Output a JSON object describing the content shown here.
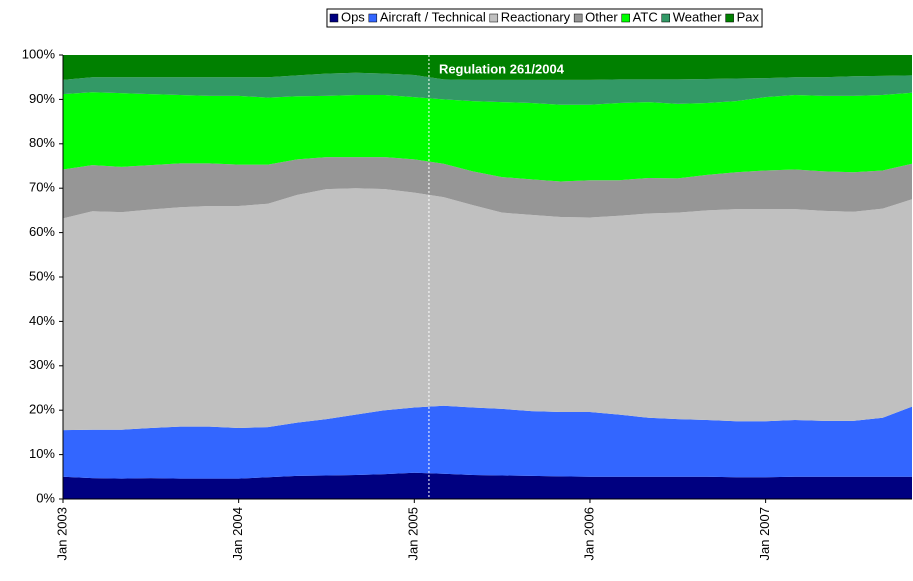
{
  "chart_data": {
    "type": "stacked_area",
    "categories": [
      "Jan 2003",
      null,
      null,
      null,
      null,
      null,
      "Jan 2004",
      null,
      null,
      null,
      null,
      null,
      "Jan 2005",
      null,
      null,
      null,
      null,
      null,
      "Jan 2006",
      null,
      null,
      null,
      null,
      null,
      "Jan 2007",
      null,
      null,
      null,
      null,
      null
    ],
    "series": [
      {
        "name": "Ops",
        "color": "#000080",
        "values": [
          5.0,
          4.7,
          4.6,
          4.7,
          4.6,
          4.6,
          4.6,
          4.9,
          5.2,
          5.3,
          5.4,
          5.6,
          5.9,
          5.7,
          5.4,
          5.3,
          5.2,
          5.1,
          5.0,
          5.0,
          5.0,
          5.0,
          5.0,
          4.9,
          4.9,
          5.0,
          5.0,
          5.0,
          5.0,
          5.0
        ]
      },
      {
        "name": "Aircraft / Technical",
        "color": "#3366ff",
        "values": [
          10.5,
          10.9,
          11.0,
          11.3,
          11.7,
          11.7,
          11.4,
          11.3,
          12.0,
          12.7,
          13.6,
          14.4,
          14.7,
          15.3,
          15.2,
          15.0,
          14.6,
          14.5,
          14.6,
          14.0,
          13.3,
          13.0,
          12.8,
          12.6,
          12.6,
          12.8,
          12.6,
          12.6,
          13.3,
          15.8
        ]
      },
      {
        "name": "Reactionary",
        "color": "#c0c0c0",
        "values": [
          47.7,
          49.2,
          49.0,
          49.2,
          49.4,
          49.7,
          50.0,
          50.3,
          51.3,
          51.8,
          51.0,
          49.8,
          48.4,
          47.0,
          45.6,
          44.2,
          44.2,
          43.9,
          43.8,
          44.8,
          46.0,
          46.5,
          47.2,
          47.8,
          47.8,
          47.5,
          47.3,
          47.1,
          47.1,
          46.7
        ]
      },
      {
        "name": "Other",
        "color": "#969696",
        "values": [
          11.0,
          10.4,
          10.2,
          10.0,
          9.9,
          9.6,
          9.3,
          8.8,
          8.0,
          7.2,
          7.0,
          7.2,
          7.5,
          7.5,
          7.6,
          8.0,
          8.0,
          8.0,
          8.4,
          8.0,
          8.0,
          7.7,
          8.0,
          8.3,
          8.7,
          8.9,
          8.9,
          8.9,
          8.6,
          8.0
        ]
      },
      {
        "name": "ATC",
        "color": "#00ff00",
        "values": [
          17.0,
          16.4,
          16.6,
          16.0,
          15.4,
          15.2,
          15.5,
          15.1,
          14.2,
          13.8,
          14.0,
          14.0,
          14.0,
          14.5,
          15.8,
          16.9,
          17.2,
          17.3,
          17.0,
          17.4,
          17.1,
          16.8,
          16.2,
          16.0,
          16.5,
          16.8,
          17.0,
          17.2,
          17.0,
          16.0
        ]
      },
      {
        "name": "Weather",
        "color": "#339966",
        "values": [
          3.2,
          3.4,
          3.6,
          3.8,
          4.0,
          4.2,
          4.2,
          4.6,
          4.7,
          5.0,
          5.0,
          4.8,
          5.0,
          4.5,
          4.8,
          5.0,
          5.2,
          5.6,
          5.6,
          5.3,
          5.1,
          5.5,
          5.4,
          5.1,
          4.3,
          4.0,
          4.2,
          4.4,
          4.3,
          3.9
        ]
      },
      {
        "name": "Pax",
        "color": "#008000",
        "values": [
          5.6,
          5.0,
          5.0,
          5.0,
          5.0,
          5.0,
          5.0,
          5.0,
          4.6,
          4.2,
          4.0,
          4.2,
          4.5,
          5.5,
          5.6,
          5.6,
          5.6,
          5.6,
          5.6,
          5.5,
          5.5,
          5.5,
          5.4,
          5.3,
          5.2,
          5.0,
          5.0,
          4.8,
          4.7,
          4.6
        ]
      }
    ],
    "ylim": [
      0,
      100
    ],
    "yticks": [
      {
        "value": 0,
        "label": "0%"
      },
      {
        "value": 10,
        "label": "10%"
      },
      {
        "value": 20,
        "label": "20%"
      },
      {
        "value": 30,
        "label": "30%"
      },
      {
        "value": 40,
        "label": "40%"
      },
      {
        "value": 50,
        "label": "50%"
      },
      {
        "value": 60,
        "label": "60%"
      },
      {
        "value": 70,
        "label": "70%"
      },
      {
        "value": 80,
        "label": "80%"
      },
      {
        "value": 90,
        "label": "90%"
      },
      {
        "value": 100,
        "label": "100%"
      }
    ],
    "annotation": {
      "label": "Regulation 261/2004",
      "at": 12.5
    },
    "legend": "top"
  }
}
